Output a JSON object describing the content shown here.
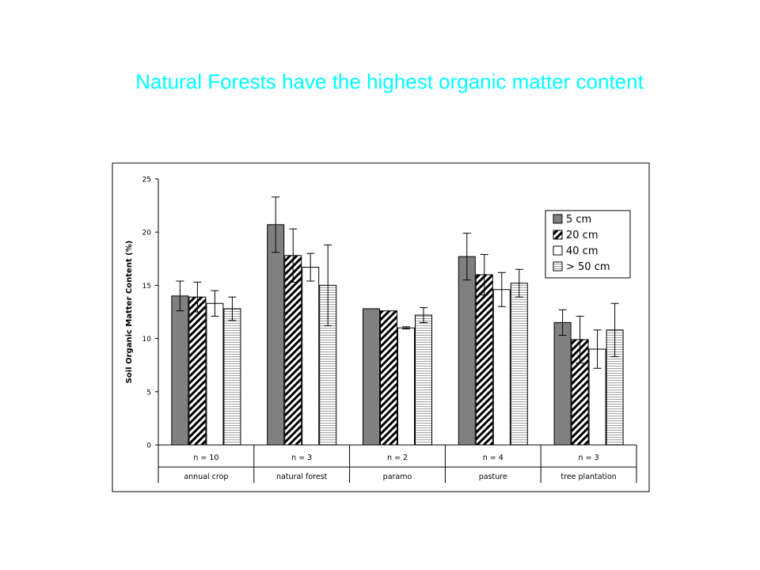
{
  "slide": {
    "title": "Natural Forests have the highest organic matter content"
  },
  "chart_data": {
    "type": "bar",
    "ylabel": "Soil Organic Matter Content (%)",
    "ylim": [
      0,
      25
    ],
    "yticks": [
      0,
      5,
      10,
      15,
      20,
      25
    ],
    "grid": false,
    "legend_position": "top-right",
    "categories": [
      "annual crop",
      "natural forest",
      "paramo",
      "pasture",
      "tree plantation"
    ],
    "sample_sizes": [
      "n = 10",
      "n = 3",
      "n = 2",
      "n = 4",
      "n = 3"
    ],
    "series": [
      {
        "name": "5 cm",
        "pattern": "solid-gray",
        "color": "#808080",
        "values": [
          14.0,
          20.7,
          12.8,
          17.7,
          11.5
        ],
        "errors": [
          1.4,
          2.6,
          0,
          2.2,
          1.2
        ]
      },
      {
        "name": "20 cm",
        "pattern": "diagonal-hatch",
        "color": "#000000",
        "values": [
          13.9,
          17.8,
          12.6,
          16.0,
          9.9
        ],
        "errors": [
          1.4,
          2.5,
          0,
          1.9,
          2.2
        ]
      },
      {
        "name": "40 cm",
        "pattern": "white",
        "color": "#ffffff",
        "values": [
          13.3,
          16.7,
          11.0,
          14.6,
          9.0
        ],
        "errors": [
          1.2,
          1.3,
          0.1,
          1.6,
          1.8
        ]
      },
      {
        "name": "> 50 cm",
        "pattern": "horizontal-lines",
        "color": "#808080",
        "values": [
          12.8,
          15.0,
          12.2,
          15.2,
          10.8
        ],
        "errors": [
          1.1,
          3.8,
          0.7,
          1.3,
          2.5
        ]
      }
    ]
  }
}
